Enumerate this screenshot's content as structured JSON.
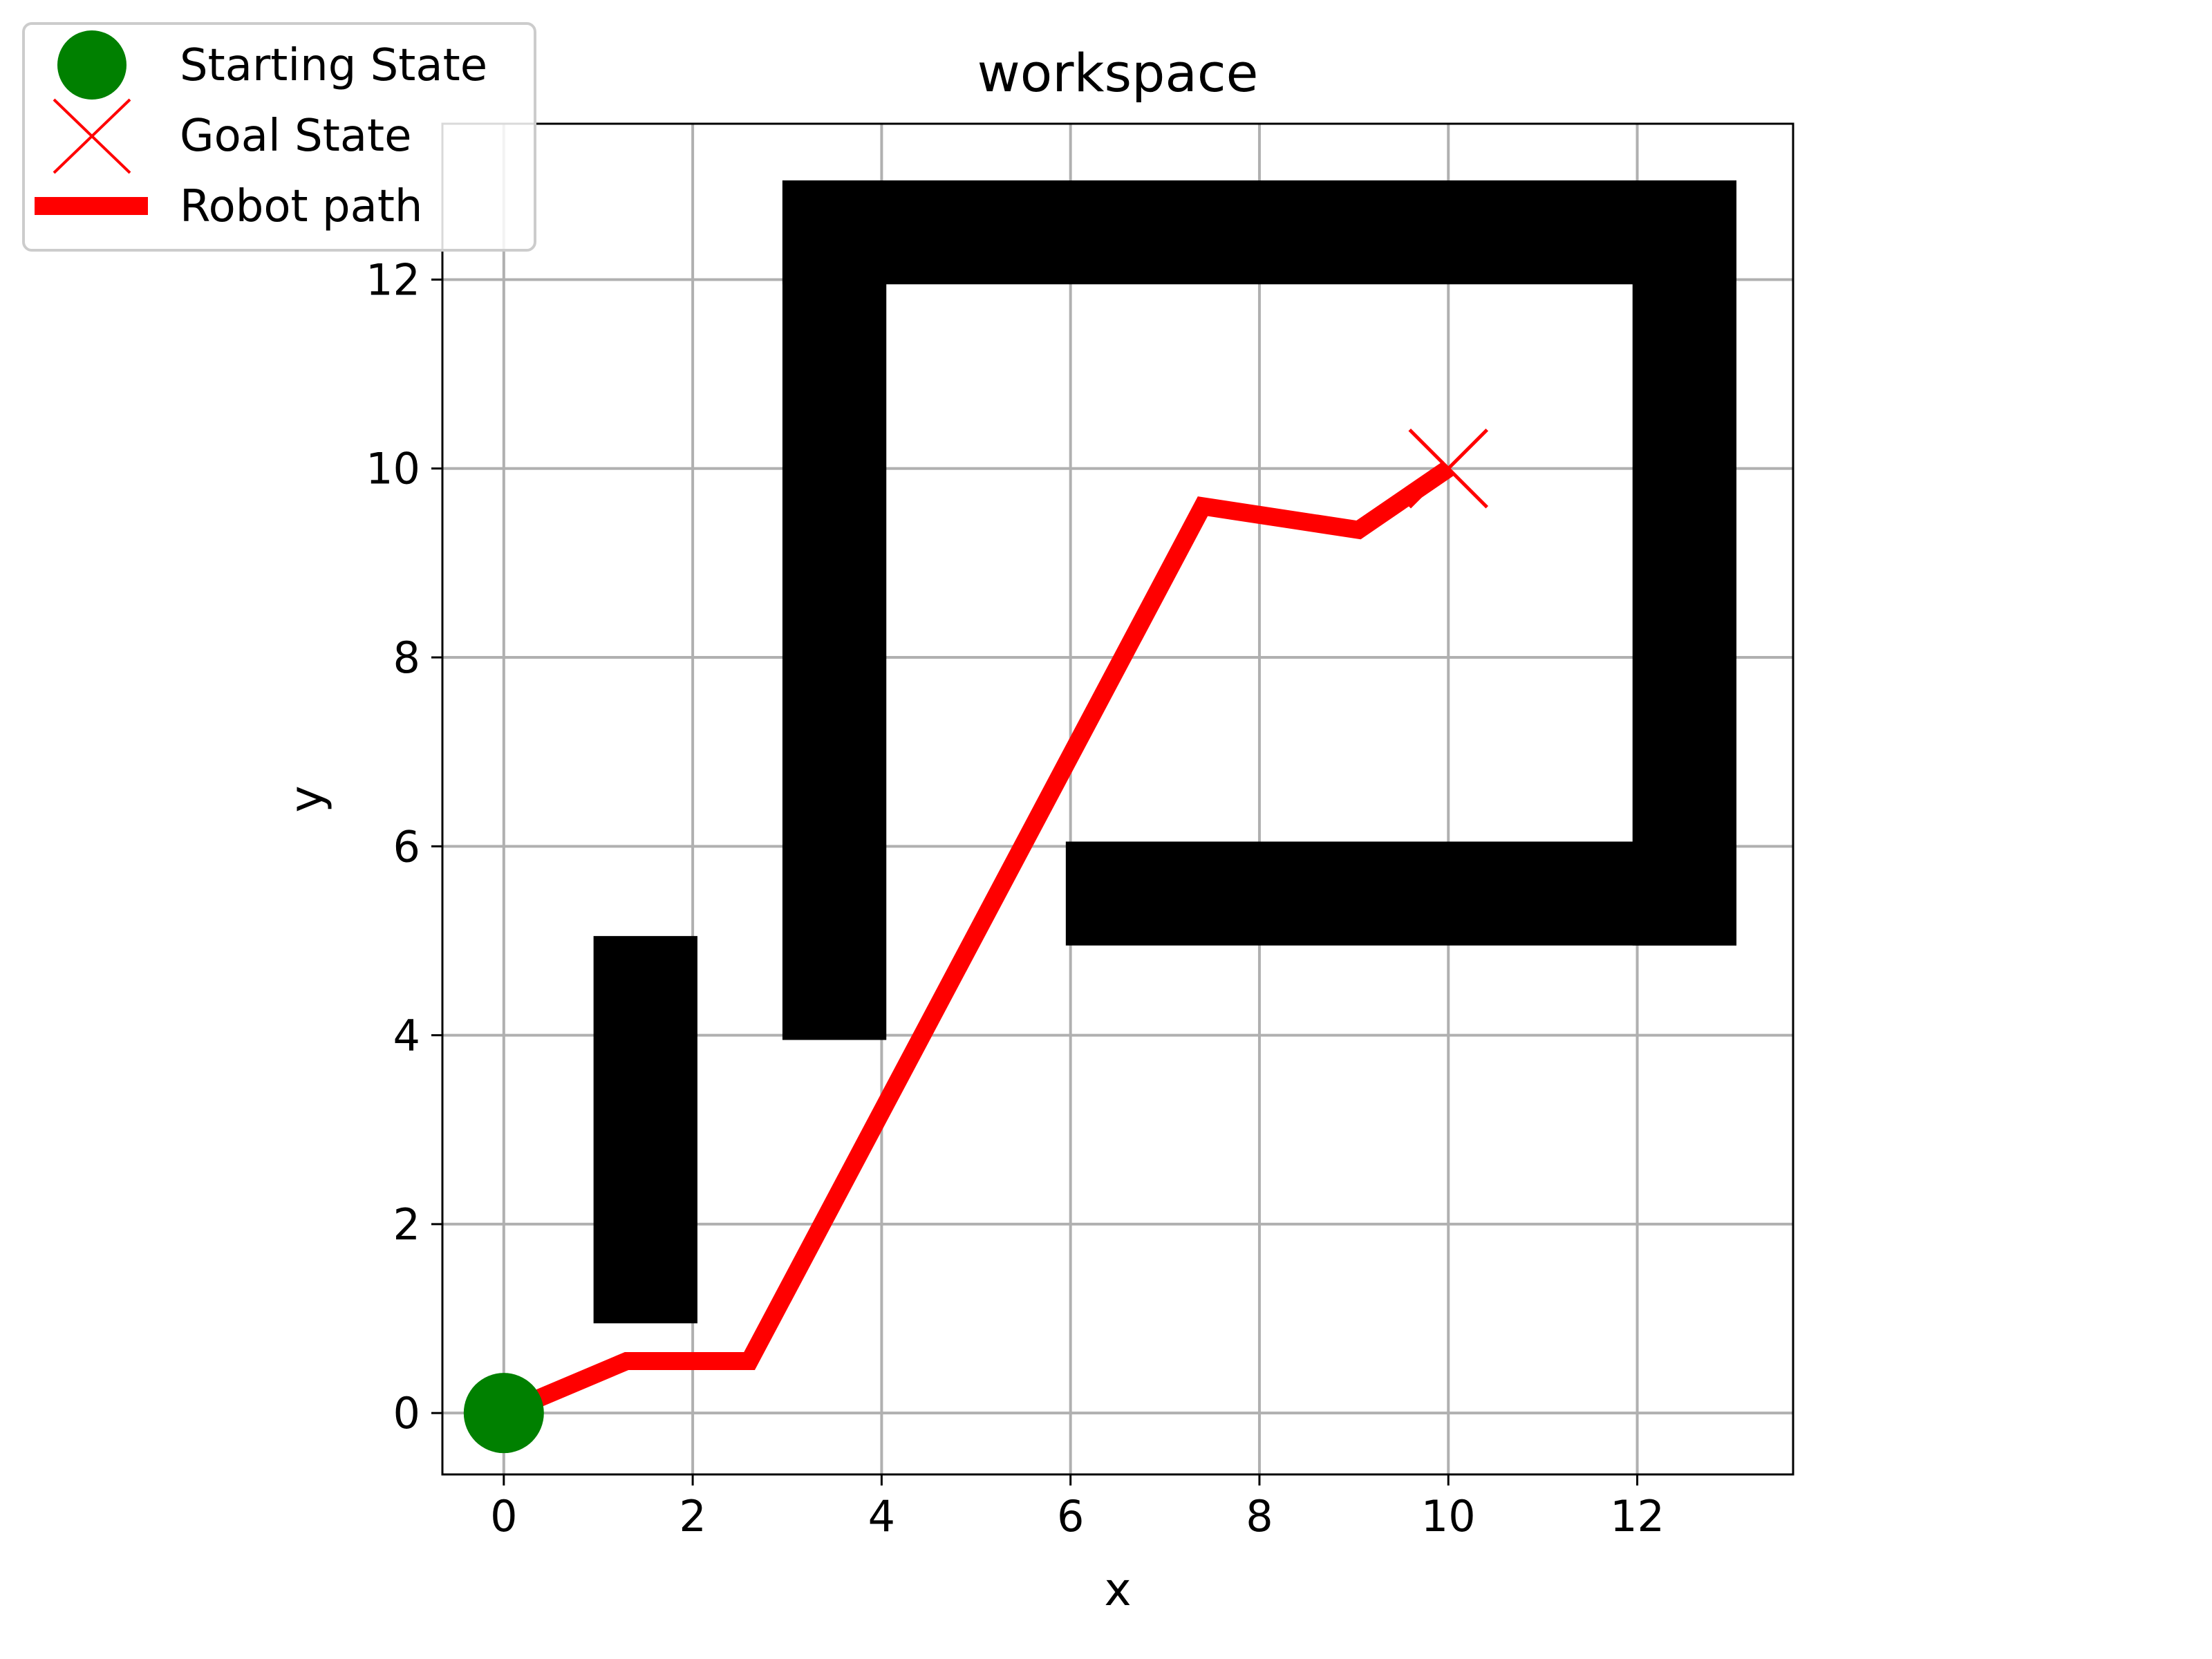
{
  "chart_data": {
    "type": "line",
    "title": "workspace",
    "xlabel": "x",
    "ylabel": "y",
    "xlim": [
      -0.65,
      13.65
    ],
    "ylim": [
      -0.65,
      13.65
    ],
    "xticks": [
      "0",
      "2",
      "4",
      "6",
      "8",
      "10",
      "12"
    ],
    "yticks": [
      "0",
      "2",
      "4",
      "6",
      "8",
      "10",
      "12"
    ],
    "grid": true,
    "legend_placement": "top-left",
    "obstacles": [
      {
        "x0": 0.95,
        "y0": 0.95,
        "x1": 2.05,
        "y1": 5.05
      },
      {
        "x0": 2.95,
        "y0": 3.95,
        "x1": 4.05,
        "y1": 13.05
      },
      {
        "x0": 2.95,
        "y0": 11.95,
        "x1": 13.05,
        "y1": 13.05
      },
      {
        "x0": 11.95,
        "y0": 4.95,
        "x1": 13.05,
        "y1": 13.05
      },
      {
        "x0": 5.95,
        "y0": 4.95,
        "x1": 13.05,
        "y1": 6.05
      }
    ],
    "series": [
      {
        "name": "Robot path",
        "color": "#ff0000",
        "x": [
          0,
          1.3,
          2.6,
          7.4,
          9.05,
          10
        ],
        "y": [
          0,
          0.55,
          0.55,
          9.6,
          9.35,
          10
        ]
      }
    ],
    "start": {
      "name": "Starting State",
      "x": 0,
      "y": 0,
      "color": "#008000"
    },
    "goal": {
      "name": "Goal State",
      "x": 10,
      "y": 10,
      "color": "#ff0000"
    },
    "legend": [
      "Starting State",
      "Goal State",
      "Robot path"
    ]
  }
}
